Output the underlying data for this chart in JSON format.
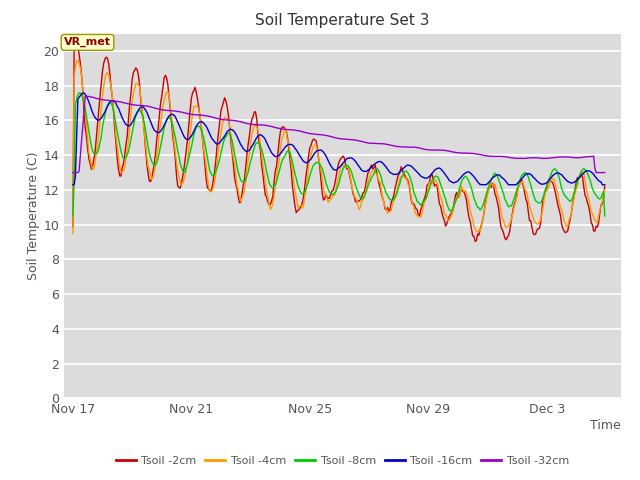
{
  "title": "Soil Temperature Set 3",
  "xlabel": "Time",
  "ylabel": "Soil Temperature (C)",
  "ylim": [
    0,
    21
  ],
  "yticks": [
    0,
    2,
    4,
    6,
    8,
    10,
    12,
    14,
    16,
    18,
    20
  ],
  "plot_bg_color": "#dcdcdc",
  "fig_bg_color": "#ffffff",
  "grid_color": "#ffffff",
  "legend_labels": [
    "Tsoil -2cm",
    "Tsoil -4cm",
    "Tsoil -8cm",
    "Tsoil -16cm",
    "Tsoil -32cm"
  ],
  "line_colors": [
    "#cc0000",
    "#ff9900",
    "#00cc00",
    "#0000cc",
    "#9900cc"
  ],
  "annotation_text": "VR_met",
  "x_tick_labels": [
    "Nov 17",
    "Nov 21",
    "Nov 25",
    "Nov 29",
    "Dec 3"
  ],
  "x_tick_positions": [
    0,
    4,
    8,
    12,
    16
  ]
}
